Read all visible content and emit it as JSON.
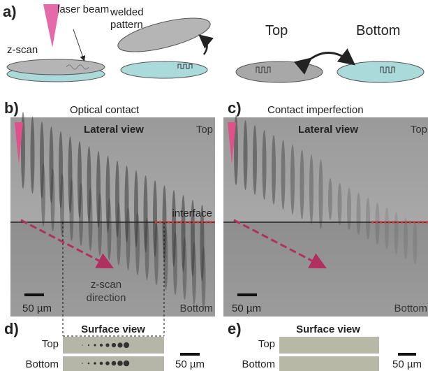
{
  "panel_a": {
    "label": "a)",
    "laser_beam": "laser beam",
    "welded_pattern": [
      "welded",
      "pattern"
    ],
    "z_scan": "z-scan",
    "top": "Top",
    "bottom": "Bottom"
  },
  "panel_b": {
    "label": "b)",
    "title": "Optical contact",
    "view": "Lateral view",
    "top": "Top",
    "bottom": "Bottom",
    "interface": "interface",
    "direction": [
      "z-scan",
      "direction"
    ],
    "scale": "50 µm"
  },
  "panel_c": {
    "label": "c)",
    "title": "Contact imperfection",
    "view": "Lateral view",
    "top": "Top",
    "bottom": "Bottom",
    "scale": "50 µm"
  },
  "panel_d": {
    "label": "d)",
    "view": "Surface view",
    "top": "Top",
    "bottom": "Bottom",
    "scale": "50 µm"
  },
  "panel_e": {
    "label": "e)",
    "view": "Surface view",
    "top": "Top",
    "bottom": "Bottom",
    "scale": "50 µm"
  }
}
